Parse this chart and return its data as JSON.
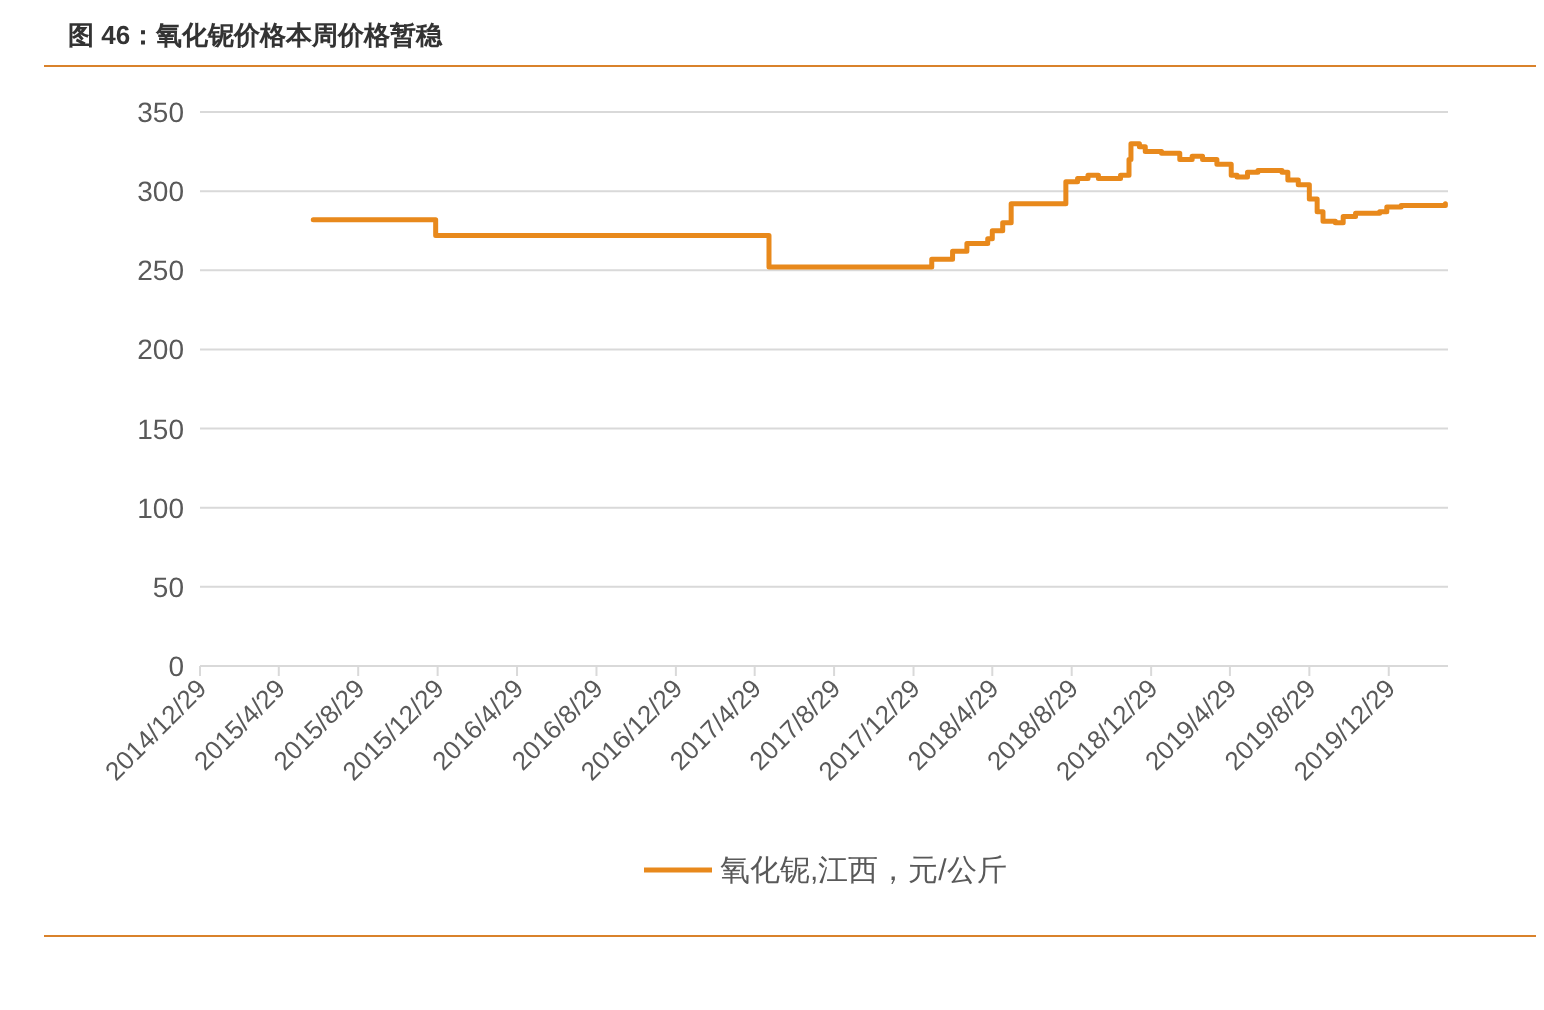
{
  "chart_data": {
    "type": "step",
    "title": "图 46：氧化铌价格本周价格暂稳",
    "x": [
      "2015-06-21",
      "2015-12-26",
      "2017-05-21",
      "2018-01-26",
      "2018-02-27",
      "2018-03-21",
      "2018-04-22",
      "2018-04-29",
      "2018-05-15",
      "2018-05-28",
      "2018-08-20",
      "2018-09-07",
      "2018-09-23",
      "2018-10-09",
      "2018-11-12",
      "2018-11-25",
      "2018-11-28",
      "2018-12-11",
      "2018-12-20",
      "2019-01-14",
      "2019-02-11",
      "2019-03-02",
      "2019-03-18",
      "2019-04-09",
      "2019-05-01",
      "2019-05-10",
      "2019-05-26",
      "2019-06-11",
      "2019-07-18",
      "2019-07-27",
      "2019-08-12",
      "2019-08-29",
      "2019-09-10",
      "2019-09-19",
      "2019-10-08",
      "2019-10-20",
      "2019-11-08",
      "2019-12-15",
      "2019-12-26",
      "2020-01-17",
      "2020-03-25"
    ],
    "series": [
      {
        "name": "氧化铌,江西，元/公斤",
        "color": "#e8891c",
        "values": [
          282,
          272,
          252,
          257,
          262,
          267,
          270,
          275,
          280,
          292,
          306,
          308,
          310,
          308,
          310,
          320,
          330,
          328,
          325,
          324,
          320,
          322,
          320,
          317,
          310,
          309,
          312,
          313,
          312,
          307,
          304,
          295,
          287,
          281,
          280,
          284,
          286,
          287,
          290,
          291,
          292
        ]
      }
    ],
    "xlim": [
      "2014-12-29",
      "2020-03-29"
    ],
    "xticks": [
      {
        "value": "2014-12-29",
        "label": "2014/12/29"
      },
      {
        "value": "2015-04-29",
        "label": "2015/4/29"
      },
      {
        "value": "2015-08-29",
        "label": "2015/8/29"
      },
      {
        "value": "2015-12-29",
        "label": "2015/12/29"
      },
      {
        "value": "2016-04-29",
        "label": "2016/4/29"
      },
      {
        "value": "2016-08-29",
        "label": "2016/8/29"
      },
      {
        "value": "2016-12-29",
        "label": "2016/12/29"
      },
      {
        "value": "2017-04-29",
        "label": "2017/4/29"
      },
      {
        "value": "2017-08-29",
        "label": "2017/8/29"
      },
      {
        "value": "2017-12-29",
        "label": "2017/12/29"
      },
      {
        "value": "2018-04-29",
        "label": "2018/4/29"
      },
      {
        "value": "2018-08-29",
        "label": "2018/8/29"
      },
      {
        "value": "2018-12-29",
        "label": "2018/12/29"
      },
      {
        "value": "2019-04-29",
        "label": "2019/4/29"
      },
      {
        "value": "2019-08-29",
        "label": "2019/8/29"
      },
      {
        "value": "2019-12-29",
        "label": "2019/12/29"
      }
    ],
    "ylim": [
      0,
      350
    ],
    "yticks": [
      0,
      50,
      100,
      150,
      200,
      250,
      300,
      350
    ],
    "grid": "y",
    "legend": "bottom"
  }
}
